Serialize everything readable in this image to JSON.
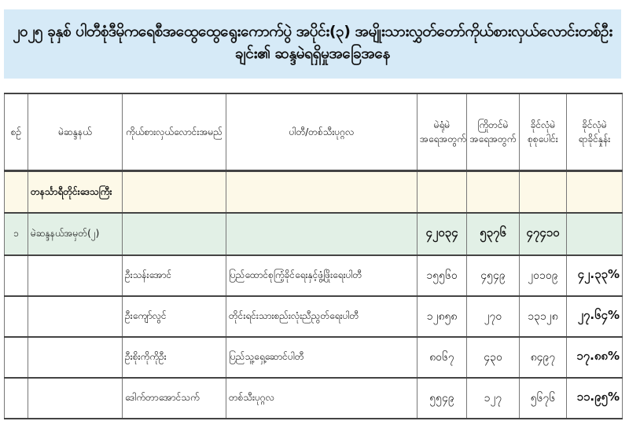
{
  "title": "၂၀၂၅ ခုနှစ် ပါတီစုံဒီမိုကရေစီအထွေထွေရွေးကောက်ပွဲ အပိုင်း(၃) အမျိုးသားလွှတ်တော်ကိုယ်စားလှယ်လောင်းတစ်ဦးချင်း၏ ဆန္ဒမဲရရှိမှုအခြေအနေ",
  "colors": {
    "title_bg": "#d6eaf7",
    "region_bg": "#fdf9e8",
    "constituency_bg": "#e2f0e6"
  },
  "headers": [
    "စဉ်",
    "မဲဆန္ဒနယ်",
    "ကိုယ်စားလှယ်လောင်းအမည်",
    "ပါတီ/တစ်သီးပုဂ္ဂလ",
    "မဲရုံမဲ\nအရေအတွက်",
    "ကြိုတင်မဲ\nအရေအတွက်",
    "ခိုင်လုံမဲ\nစုစုပေါင်း",
    "ခိုင်လုံမဲ\nရာခိုင်နှုန်း"
  ],
  "region": "တနင်္သာရီတိုင်းဒေသကြီး",
  "constituency": {
    "no": "၁",
    "name": "မဲဆန္ဒနယ်အမှတ်(၂)",
    "station_votes": "၄၂၀၃၄",
    "advance_votes": "၅၃၇၆",
    "total_valid": "၄၇၄၁၀"
  },
  "candidates": [
    {
      "name": "ဦးသန်းအောင်",
      "party": "ပြည်ထောင်စုကြံ့ခိုင်ရေးနှင့်ဖွံ့ဖြိုးရေးပါတီ",
      "station_votes": "၁၅၅၆၀",
      "advance_votes": "၄၅၄၉",
      "total_valid": "၂၀၁၀၉",
      "percent": "၄၂.၃၃%"
    },
    {
      "name": "ဦးကျော်လွင်",
      "party": "တိုင်းရင်းသားစည်းလုံးညီညွတ်ရေးပါတီ",
      "station_votes": "၁၂၈၅၈",
      "advance_votes": "၂၇၀",
      "total_valid": "၁၃၁၂၈",
      "percent": "၂၇.၆၄%"
    },
    {
      "name": "ဦးစိုးကိုကိုဦး",
      "party": "ပြည်သူ့ရှေ့ဆောင်ပါတီ",
      "station_votes": "၈၀၆၇",
      "advance_votes": "၄၃၀",
      "total_valid": "၈၄၉၇",
      "percent": "၁၇.၈၈%"
    },
    {
      "name": "ဒေါက်တာအောင်သက်",
      "party": "တစ်သီးပုဂ္ဂလ",
      "station_votes": "၅၅၄၉",
      "advance_votes": "၁၂၇",
      "total_valid": "၅၆၇၆",
      "percent": "၁၁.၉၅%"
    }
  ]
}
